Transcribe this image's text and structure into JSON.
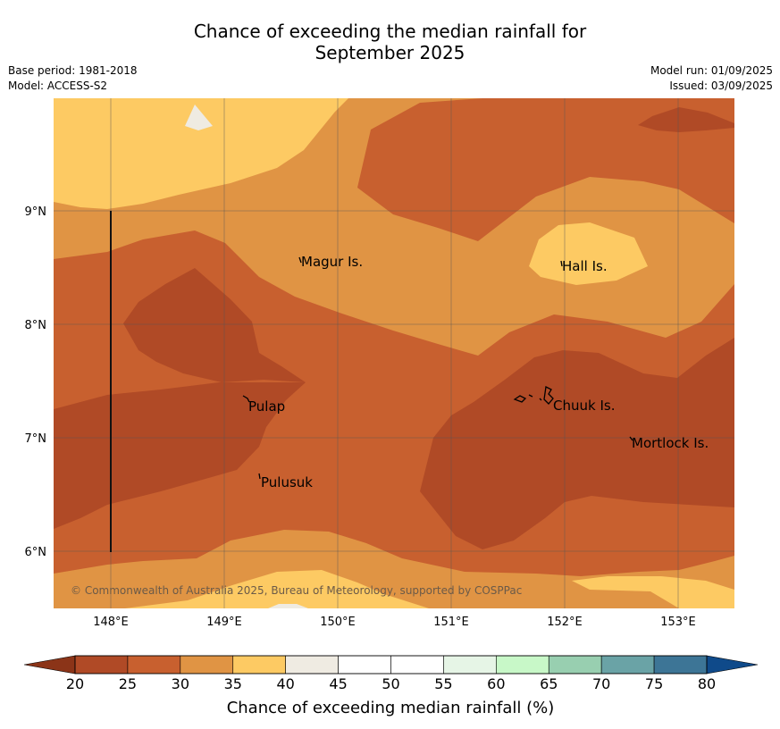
{
  "header": {
    "title_line1": "Chance of exceeding the median rainfall for",
    "title_line2": "September 2025",
    "base_period": "Base period: 1981-2018",
    "model": "Model: ACCESS-S2",
    "model_run": "Model run: 01/09/2025",
    "issued": "Issued: 03/09/2025"
  },
  "map": {
    "lat_labels": [
      "9°N",
      "8°N",
      "7°N",
      "6°N"
    ],
    "lon_labels": [
      "148°E",
      "149°E",
      "150°E",
      "151°E",
      "152°E",
      "153°E"
    ],
    "places": [
      "Magur Is.",
      "Hall Is.",
      "Pulap",
      "Chuuk Is.",
      "Mortlock Is.",
      "Pulusuk"
    ],
    "copyright": "© Commonwealth of Australia 2025, Bureau of Meteorology, supported by COSPPac"
  },
  "colorbar": {
    "ticks": [
      "20",
      "25",
      "30",
      "35",
      "40",
      "45",
      "50",
      "55",
      "60",
      "65",
      "70",
      "75",
      "80"
    ],
    "label": "Chance of exceeding median rainfall (%)",
    "colors": [
      "#b04a26",
      "#c8602f",
      "#e09444",
      "#fdca63",
      "#efebe2",
      "#ffffff",
      "#ffffff",
      "#e6f5e6",
      "#c8f8c8",
      "#98cfb0",
      "#6aa3a6",
      "#3d7596"
    ],
    "under_color": "#8b3418",
    "over_color": "#0f4a8a"
  }
}
